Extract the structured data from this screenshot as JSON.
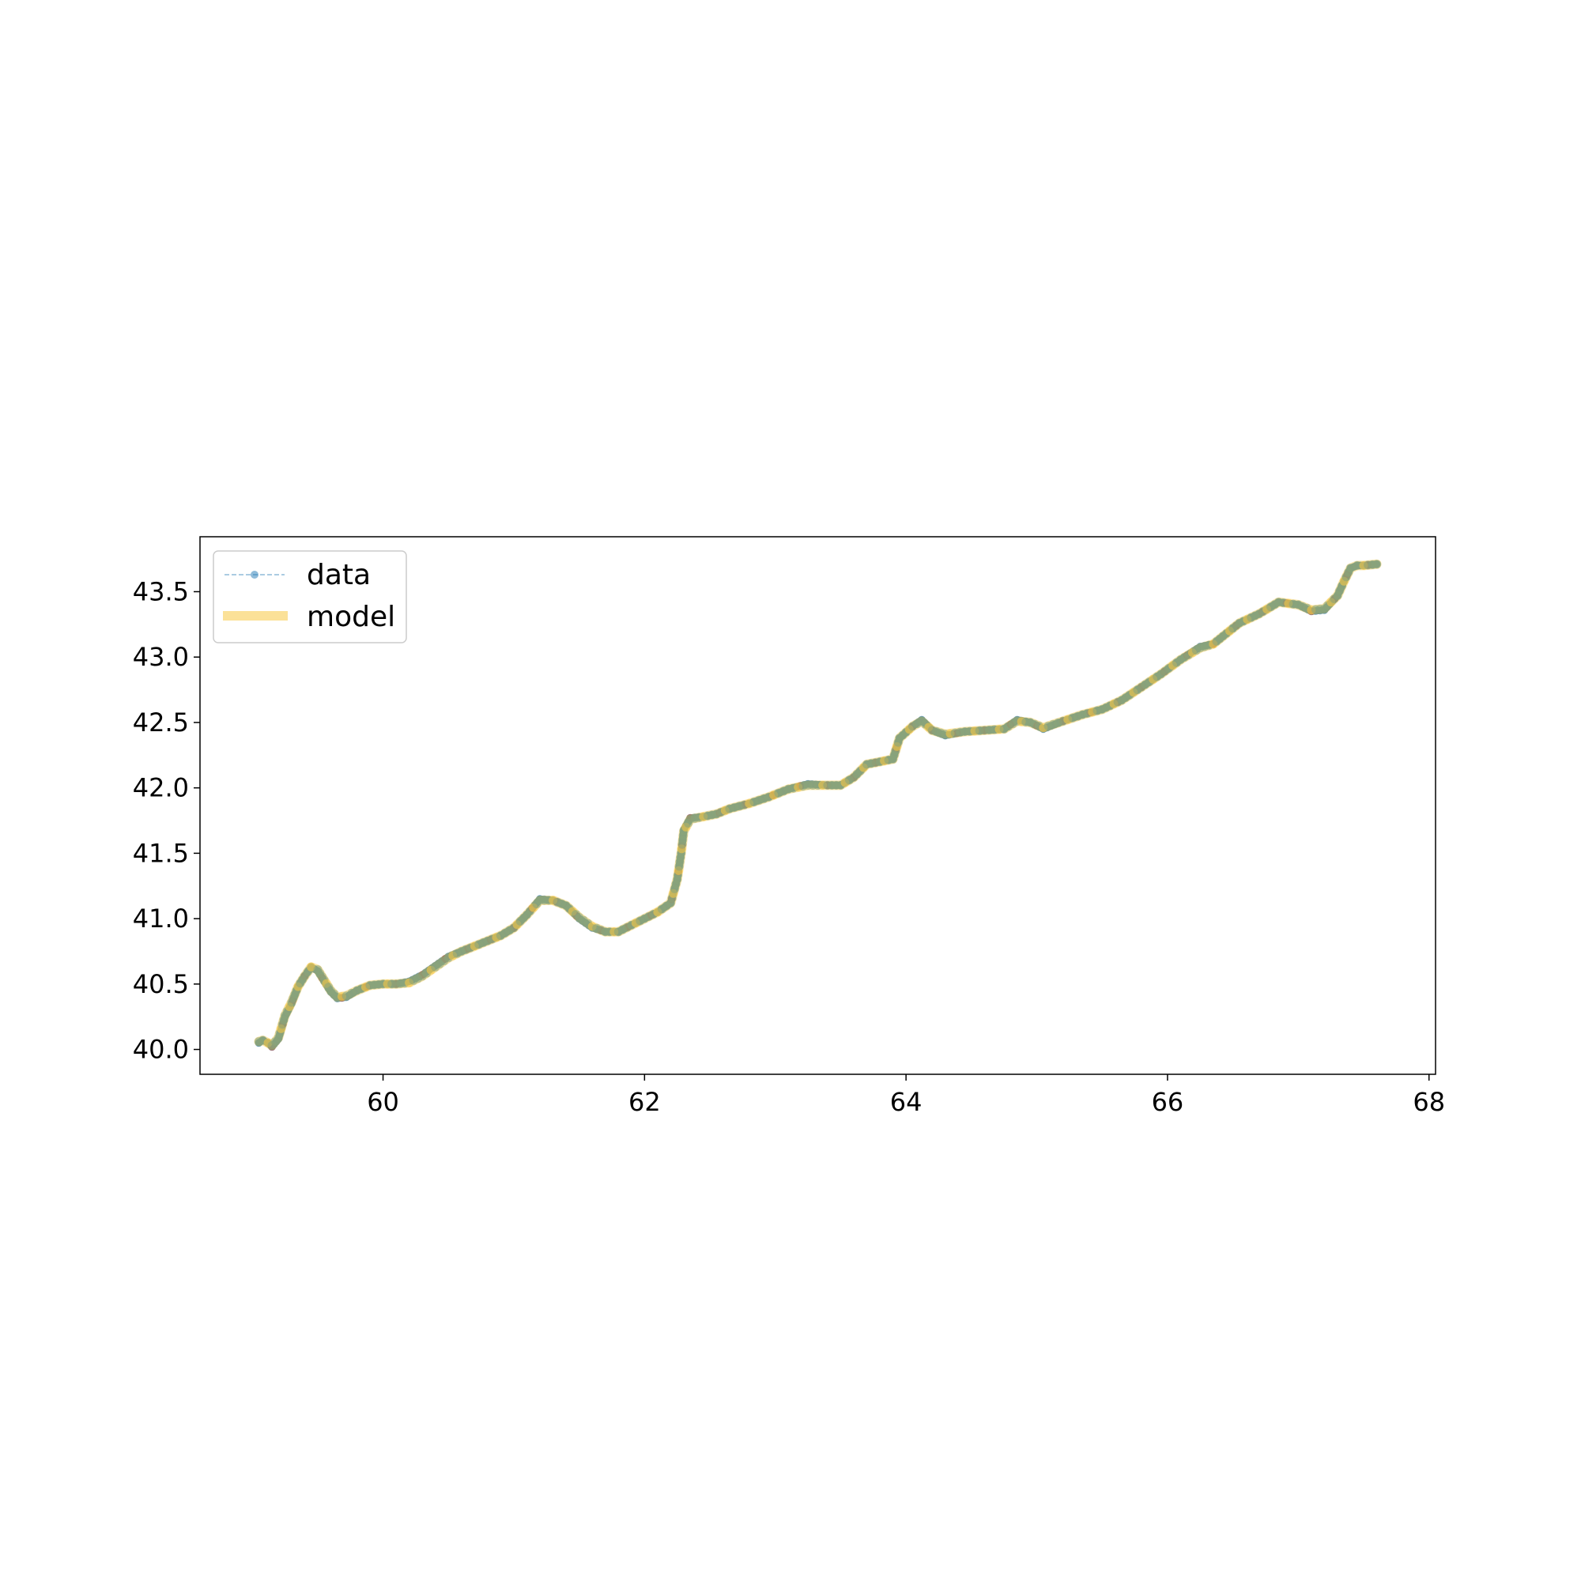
{
  "chart_data": {
    "type": "line",
    "title": "",
    "xlabel": "",
    "ylabel": "",
    "xlim": [
      58.6,
      68.05
    ],
    "ylim": [
      39.81,
      43.92
    ],
    "x_ticks": [
      60,
      62,
      64,
      66,
      68
    ],
    "y_ticks": [
      40.0,
      40.5,
      41.0,
      41.5,
      42.0,
      42.5,
      43.0,
      43.5
    ],
    "x_tick_labels": [
      "60",
      "62",
      "64",
      "66",
      "68"
    ],
    "y_tick_labels": [
      "40.0",
      "40.5",
      "41.0",
      "41.5",
      "42.0",
      "42.5",
      "43.0",
      "43.5"
    ],
    "grid": false,
    "legend": {
      "position": "top-left",
      "entries": [
        {
          "label": "data",
          "style": "dashed-line-with-markers",
          "color": "#1f77b4"
        },
        {
          "label": "model",
          "style": "thick-line",
          "color": "#f7c844"
        }
      ]
    },
    "series": [
      {
        "name": "data",
        "color": "#1f77b4",
        "x": [
          59.05,
          59.08,
          59.12,
          59.15,
          59.2,
          59.25,
          59.3,
          59.35,
          59.4,
          59.45,
          59.5,
          59.55,
          59.6,
          59.65,
          59.72,
          59.8,
          59.9,
          60.0,
          60.1,
          60.2,
          60.3,
          60.4,
          60.5,
          60.6,
          60.7,
          60.8,
          60.9,
          61.0,
          61.1,
          61.2,
          61.3,
          61.4,
          61.5,
          61.6,
          61.7,
          61.8,
          61.9,
          62.0,
          62.1,
          62.2,
          62.25,
          62.28,
          62.3,
          62.35,
          62.45,
          62.55,
          62.65,
          62.8,
          62.95,
          63.1,
          63.25,
          63.4,
          63.5,
          63.6,
          63.7,
          63.8,
          63.9,
          63.95,
          64.05,
          64.12,
          64.2,
          64.3,
          64.45,
          64.6,
          64.75,
          64.85,
          64.95,
          65.05,
          65.2,
          65.35,
          65.5,
          65.65,
          65.8,
          65.95,
          66.1,
          66.25,
          66.35,
          66.45,
          66.55,
          66.7,
          66.85,
          67.0,
          67.1,
          67.2,
          67.3,
          67.35,
          67.4,
          67.45,
          67.5,
          67.6
        ],
        "y": [
          40.05,
          40.07,
          40.05,
          40.02,
          40.08,
          40.25,
          40.35,
          40.48,
          40.56,
          40.63,
          40.6,
          40.52,
          40.44,
          40.39,
          40.4,
          40.45,
          40.49,
          40.5,
          40.5,
          40.52,
          40.57,
          40.64,
          40.71,
          40.75,
          40.79,
          40.83,
          40.87,
          40.93,
          41.03,
          41.15,
          41.14,
          41.1,
          41.0,
          40.93,
          40.9,
          40.9,
          40.95,
          41.0,
          41.05,
          41.12,
          41.3,
          41.5,
          41.68,
          41.77,
          41.78,
          41.8,
          41.84,
          41.88,
          41.93,
          41.99,
          42.03,
          42.02,
          42.02,
          42.08,
          42.18,
          42.2,
          42.22,
          42.38,
          42.47,
          42.52,
          42.44,
          42.4,
          42.43,
          42.44,
          42.45,
          42.52,
          42.5,
          42.45,
          42.51,
          42.56,
          42.6,
          42.67,
          42.77,
          42.87,
          42.98,
          43.08,
          43.1,
          43.18,
          43.26,
          43.33,
          43.42,
          43.4,
          43.35,
          43.36,
          43.47,
          43.58,
          43.68,
          43.7,
          43.7,
          43.71
        ]
      },
      {
        "name": "model",
        "color": "#f7c844",
        "x": [
          59.05,
          59.08,
          59.12,
          59.15,
          59.2,
          59.25,
          59.3,
          59.35,
          59.4,
          59.45,
          59.5,
          59.55,
          59.6,
          59.65,
          59.72,
          59.8,
          59.9,
          60.0,
          60.1,
          60.2,
          60.3,
          60.4,
          60.5,
          60.6,
          60.7,
          60.8,
          60.9,
          61.0,
          61.1,
          61.2,
          61.3,
          61.4,
          61.5,
          61.6,
          61.7,
          61.8,
          61.9,
          62.0,
          62.1,
          62.2,
          62.25,
          62.28,
          62.3,
          62.35,
          62.45,
          62.55,
          62.65,
          62.8,
          62.95,
          63.1,
          63.25,
          63.4,
          63.5,
          63.6,
          63.7,
          63.8,
          63.9,
          63.95,
          64.05,
          64.12,
          64.2,
          64.3,
          64.45,
          64.6,
          64.75,
          64.85,
          64.95,
          65.05,
          65.2,
          65.35,
          65.5,
          65.65,
          65.8,
          65.95,
          66.1,
          66.25,
          66.35,
          66.45,
          66.55,
          66.7,
          66.85,
          67.0,
          67.1,
          67.2,
          67.3,
          67.35,
          67.4,
          67.45,
          67.5,
          67.6
        ],
        "y": [
          40.06,
          40.07,
          40.05,
          40.03,
          40.09,
          40.26,
          40.36,
          40.48,
          40.56,
          40.63,
          40.61,
          40.53,
          40.45,
          40.4,
          40.41,
          40.45,
          40.49,
          40.5,
          40.5,
          40.51,
          40.56,
          40.63,
          40.7,
          40.75,
          40.79,
          40.83,
          40.87,
          40.93,
          41.03,
          41.14,
          41.14,
          41.1,
          41.01,
          40.94,
          40.9,
          40.9,
          40.95,
          41.0,
          41.05,
          41.12,
          41.3,
          41.5,
          41.67,
          41.76,
          41.78,
          41.8,
          41.84,
          41.88,
          41.93,
          41.99,
          42.02,
          42.02,
          42.02,
          42.08,
          42.18,
          42.2,
          42.22,
          42.38,
          42.47,
          42.51,
          42.44,
          42.41,
          42.43,
          42.44,
          42.45,
          42.51,
          42.5,
          42.46,
          42.51,
          42.56,
          42.6,
          42.67,
          42.77,
          42.87,
          42.98,
          43.07,
          43.1,
          43.18,
          43.26,
          43.33,
          43.42,
          43.4,
          43.36,
          43.37,
          43.47,
          43.58,
          43.68,
          43.7,
          43.7,
          43.71
        ]
      }
    ]
  }
}
